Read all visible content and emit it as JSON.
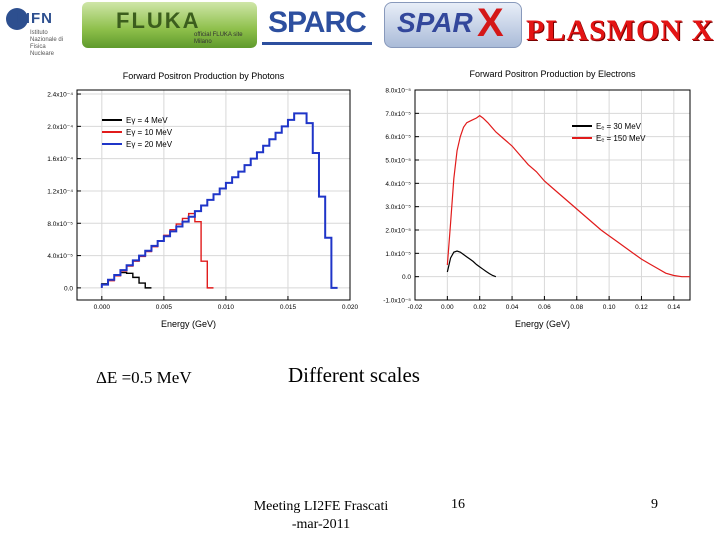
{
  "logos": {
    "infn": {
      "text": "INFN",
      "subtitle": "Istituto Nazionale di Fisica Nucleare"
    },
    "fluka": {
      "text": "FLUKA",
      "subtitle": "official FLUKA site Milano"
    },
    "sparc": {
      "text": "SPARC"
    },
    "sparx": {
      "text": "SPAR",
      "x": "X"
    },
    "plasmon": {
      "text": "PLASMON X"
    }
  },
  "chart_data": [
    {
      "type": "line",
      "title": "Forward Positron Production by Photons",
      "xlabel": "Energy (GeV)",
      "ylabel": "",
      "xlim": [
        -0.002,
        0.02
      ],
      "ylim": [
        -1.5e-05,
        0.000245
      ],
      "x_ticks": [
        0.0,
        0.005,
        0.01,
        0.015,
        0.02
      ],
      "x_tick_labels": [
        "0.000",
        "0.005",
        "0.010",
        "0.015",
        "0.020"
      ],
      "y_ticks": [
        0.0,
        4e-05,
        8e-05,
        0.00012,
        0.00016,
        0.0002,
        0.00024
      ],
      "y_tick_labels": [
        "0.0",
        "4.0x10⁻⁵",
        "8.0x10⁻⁵",
        "1.2x10⁻⁴",
        "1.6x10⁻⁴",
        "2.0x10⁻⁴",
        "2.4x10⁻⁴"
      ],
      "legend_position": "top-left",
      "series": [
        {
          "name": "Eγ = 4 MeV",
          "color": "#000000",
          "x": [
            0.0,
            0.0005,
            0.001,
            0.0015,
            0.002,
            0.0025,
            0.003,
            0.0035
          ],
          "y": [
            5e-06,
            1e-05,
            1.5e-05,
            1.9e-05,
            1.8e-05,
            1.3e-05,
            6e-06,
            0.0
          ]
        },
        {
          "name": "Eγ = 10 MeV",
          "color": "#e11b1b",
          "x": [
            0.0,
            0.0005,
            0.001,
            0.0015,
            0.002,
            0.0025,
            0.003,
            0.0035,
            0.004,
            0.0045,
            0.005,
            0.0055,
            0.006,
            0.0065,
            0.007,
            0.0075,
            0.008,
            0.0085
          ],
          "y": [
            4e-06,
            9e-06,
            1.5e-05,
            2.1e-05,
            2.7e-05,
            3.3e-05,
            3.9e-05,
            4.5e-05,
            5.1e-05,
            5.8e-05,
            6.5e-05,
            7.2e-05,
            7.9e-05,
            8.6e-05,
            9.2e-05,
            8.2e-05,
            3.3e-05,
            0.0
          ]
        },
        {
          "name": "Eγ = 20 MeV",
          "color": "#1f35c8",
          "x": [
            0.0,
            0.0005,
            0.001,
            0.0015,
            0.002,
            0.0025,
            0.003,
            0.0035,
            0.004,
            0.0045,
            0.005,
            0.0055,
            0.006,
            0.0065,
            0.007,
            0.0075,
            0.008,
            0.0085,
            0.009,
            0.0095,
            0.01,
            0.0105,
            0.011,
            0.0115,
            0.012,
            0.0125,
            0.013,
            0.0135,
            0.014,
            0.0145,
            0.015,
            0.0155,
            0.016,
            0.0165,
            0.017,
            0.0175,
            0.018,
            0.0185
          ],
          "y": [
            4e-06,
            1e-05,
            1.6e-05,
            2.2e-05,
            2.8e-05,
            3.4e-05,
            4e-05,
            4.6e-05,
            5.2e-05,
            5.8e-05,
            6.4e-05,
            7e-05,
            7.6e-05,
            8.2e-05,
            8.8e-05,
            9.5e-05,
            0.000102,
            0.000109,
            0.000116,
            0.000123,
            0.00013,
            0.000137,
            0.000144,
            0.000152,
            0.00016,
            0.000168,
            0.000176,
            0.000184,
            0.000192,
            0.0002,
            0.000208,
            0.000216,
            0.000216,
            0.000204,
            0.000167,
            0.000113,
            6.2e-05,
            0.0
          ]
        }
      ]
    },
    {
      "type": "line",
      "title": "Forward Positron Production by Electrons",
      "xlabel": "Energy (GeV)",
      "ylabel": "",
      "xlim": [
        -0.02,
        0.15
      ],
      "ylim": [
        -1e-05,
        8e-05
      ],
      "x_ticks": [
        -0.02,
        0.0,
        0.02,
        0.04,
        0.06,
        0.08,
        0.1,
        0.12,
        0.14
      ],
      "x_tick_labels": [
        "-0.02",
        "0.00",
        "0.02",
        "0.04",
        "0.06",
        "0.08",
        "0.10",
        "0.12",
        "0.14"
      ],
      "y_ticks": [
        -1e-05,
        0.0,
        1e-05,
        2e-05,
        3e-05,
        4e-05,
        5e-05,
        6e-05,
        7e-05,
        8e-05
      ],
      "y_tick_labels": [
        "-1.0x10⁻⁵",
        "0.0",
        "1.0x10⁻⁵",
        "2.0x10⁻⁵",
        "3.0x10⁻⁵",
        "4.0x10⁻⁵",
        "5.0x10⁻⁵",
        "6.0x10⁻⁵",
        "7.0x10⁻⁵",
        "8.0x10⁻⁵"
      ],
      "legend_position": "top-right",
      "series": [
        {
          "name": "Eₑ = 30 MeV",
          "color": "#000000",
          "x": [
            0.0,
            0.002,
            0.004,
            0.006,
            0.008,
            0.01,
            0.012,
            0.014,
            0.016,
            0.018,
            0.02,
            0.022,
            0.024,
            0.026,
            0.028,
            0.03
          ],
          "y": [
            2e-06,
            8e-06,
            1.05e-05,
            1.1e-05,
            1.05e-05,
            9.5e-06,
            8.5e-06,
            7.5e-06,
            6.5e-06,
            5.2e-06,
            4.2e-06,
            3.2e-06,
            2.2e-06,
            1.3e-06,
            5e-07,
            0.0
          ]
        },
        {
          "name": "Eₑ = 150 MeV",
          "color": "#e11b1b",
          "x": [
            0.0,
            0.002,
            0.004,
            0.006,
            0.008,
            0.01,
            0.012,
            0.015,
            0.018,
            0.02,
            0.022,
            0.025,
            0.03,
            0.035,
            0.04,
            0.045,
            0.05,
            0.055,
            0.06,
            0.065,
            0.07,
            0.075,
            0.08,
            0.085,
            0.09,
            0.095,
            0.1,
            0.105,
            0.11,
            0.115,
            0.12,
            0.125,
            0.13,
            0.135,
            0.14,
            0.145,
            0.15
          ],
          "y": [
            5e-06,
            2.3e-05,
            4.2e-05,
            5.4e-05,
            6e-05,
            6.4e-05,
            6.6e-05,
            6.7e-05,
            6.8e-05,
            6.9e-05,
            6.8e-05,
            6.6e-05,
            6.2e-05,
            5.9e-05,
            5.6e-05,
            5.2e-05,
            4.8e-05,
            4.5e-05,
            4.1e-05,
            3.8e-05,
            3.5e-05,
            3.2e-05,
            2.9e-05,
            2.6e-05,
            2.3e-05,
            2e-05,
            1.75e-05,
            1.5e-05,
            1.25e-05,
            1e-05,
            7.5e-06,
            5.5e-06,
            3.5e-06,
            1.5e-06,
            5e-07,
            0.0,
            0.0
          ]
        }
      ]
    }
  ],
  "captions": {
    "delta_e": "ΔE =0.5 MeV",
    "different_scales": "Different scales"
  },
  "footer": {
    "meeting": "Meeting LI2FE Frascati",
    "date": "-mar-2011",
    "page_a": "16",
    "page_b": "9"
  }
}
